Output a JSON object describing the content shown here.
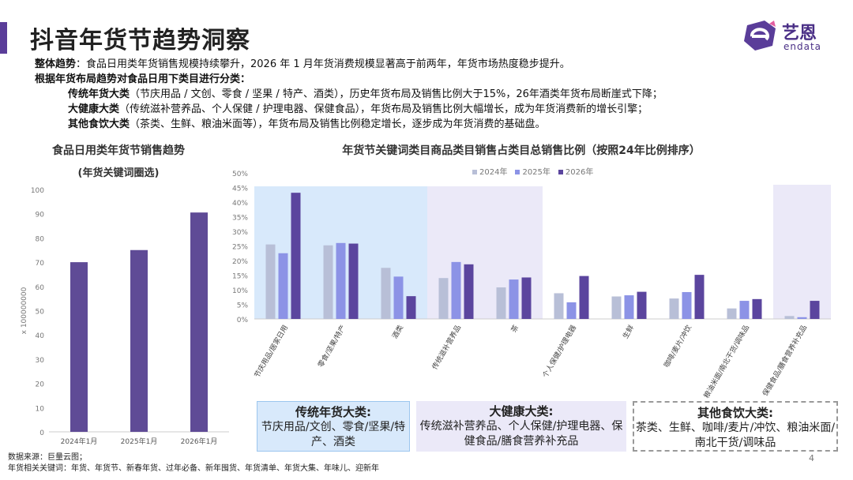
{
  "page": {
    "title": "抖音年货节趋势洞察",
    "logo_name": "艺恩",
    "logo_sub": "endata",
    "page_number": "4"
  },
  "summary": {
    "line1_label": "整体趋势",
    "line1_text": "：食品日用类年货销售规模持续攀升，2026 年 1 月年货消费规模显著高于前两年，年货市场热度稳步提升。",
    "line2": "根据年货布局趋势对食品日用下类目进行分类：",
    "line3_label": "传统年货大类",
    "line3_text": "（节庆用品 / 文创、零食 / 坚果 / 特产、酒类），历史年货布局及销售比例大于15%，26年酒类年货布局断崖式下降；",
    "line4_label": "大健康大类",
    "line4_text": "（传统滋补营养品、个人保健 / 护理电器、保健食品），年货布局及销售比例大幅增长，成为年货消费新的增长引擎；",
    "line5_label": "其他食饮大类",
    "line5_text": "（茶类、生鲜、粮油米面等），年货布局及销售比例稳定增长，逐步成为年货消费的基础盘。"
  },
  "colors": {
    "accent": "#5a3d99",
    "bar_left": "#5f4b96",
    "s2024": "#b8bfd7",
    "s2025": "#8c93e6",
    "s2026": "#5b459e",
    "band_traditional": "#d8e9fb",
    "band_health": "#ebe9f8",
    "band_other": "#ebe9f8"
  },
  "chart_data": [
    {
      "type": "bar",
      "title": "食品日用类年货节销售趋势",
      "subtitle": "(年货关键词圈选)",
      "ylabel": "x 100000000",
      "categories": [
        "2024年1月",
        "2025年1月",
        "2026年1月"
      ],
      "values": [
        70,
        75,
        90.5
      ],
      "ylim": [
        0,
        100
      ],
      "yticks": [
        0,
        10,
        20,
        30,
        40,
        50,
        60,
        70,
        80,
        90,
        100
      ]
    },
    {
      "type": "bar",
      "title": "年货节关键词类目商品类目销售占类目总销售比例（按照24年比例排序）",
      "categories": [
        "节庆用品/居家日用",
        "零食/坚果/特产",
        "酒类",
        "传统滋补营养品",
        "茶",
        "个人保健/护理电器",
        "生鲜",
        "咖啡/麦片/冲饮",
        "粮油米面/南北干货/调味品",
        "保健食品/膳食营养补充品"
      ],
      "series": [
        {
          "name": "2024年",
          "values": [
            25.5,
            25.2,
            17.5,
            14.0,
            10.8,
            8.8,
            7.7,
            7.0,
            3.6,
            1.0
          ]
        },
        {
          "name": "2025年",
          "values": [
            22.5,
            26.0,
            14.5,
            19.5,
            13.5,
            5.7,
            8.1,
            9.2,
            6.2,
            0.6
          ]
        },
        {
          "name": "2026年",
          "values": [
            43.2,
            25.8,
            7.8,
            18.7,
            14.2,
            14.7,
            9.3,
            15.1,
            6.8,
            6.2
          ]
        }
      ],
      "ylim": [
        0,
        50
      ],
      "yticks": [
        "0%",
        "5%",
        "10%",
        "15%",
        "20%",
        "25%",
        "30%",
        "35%",
        "40%",
        "45%",
        "50%"
      ]
    }
  ],
  "category_boxes": [
    {
      "name": "传统年货大类:",
      "desc": "节庆用品/文创、零食/坚果/特产、酒类"
    },
    {
      "name": "大健康大类:",
      "desc": "传统滋补营养品、个人保健/护理电器、保健食品/膳食营养补充品"
    },
    {
      "name": "其他食饮大类:",
      "desc": "茶类、生鲜、咖啡/麦片/冲饮、粮油米面/南北干货/调味品"
    }
  ],
  "footer": {
    "source": "数据来源：巨量云图；",
    "keywords": "年货相关关键词：年货、年货节、新春年货、过年必备、新年囤货、年货清单、年货大集、年味儿、迎新年"
  }
}
